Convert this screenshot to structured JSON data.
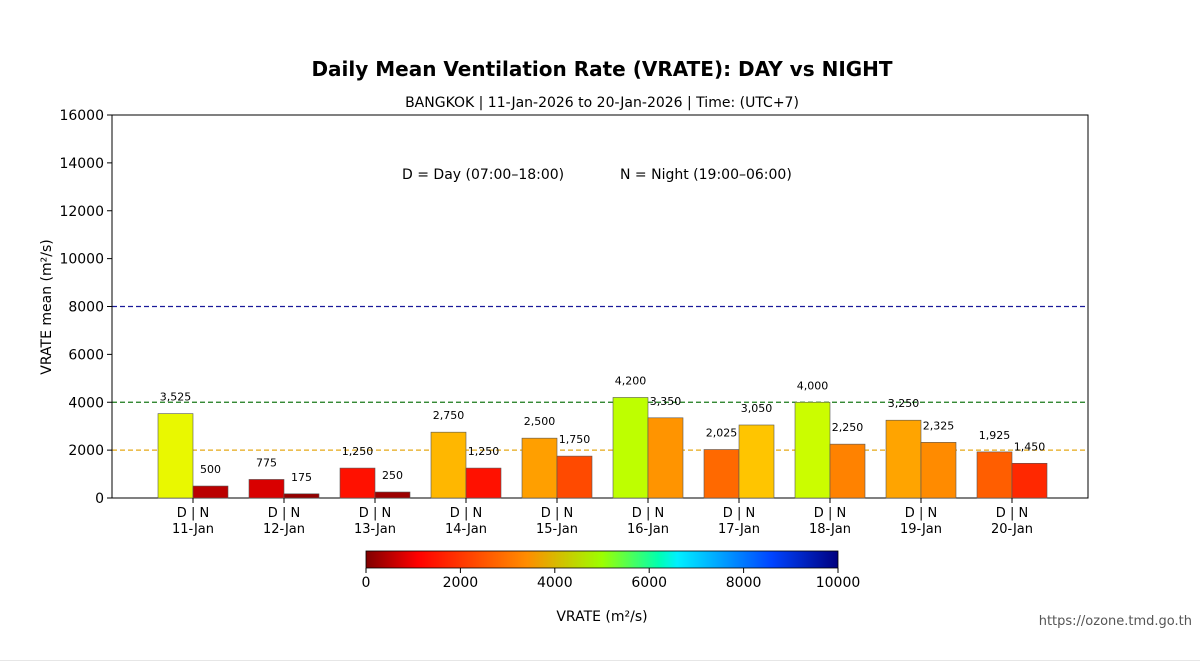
{
  "chart_data": {
    "type": "bar",
    "title": "Daily Mean Ventilation Rate (VRATE): DAY vs NIGHT",
    "subtitle": "BANGKOK | 11-Jan-2026 to 20-Jan-2026 | Time: (UTC+7)",
    "ylabel": "VRATE mean (m²/s)",
    "xlabel": "",
    "ylim": [
      0,
      16000
    ],
    "yticks": [
      "0",
      "2000",
      "4000",
      "6000",
      "8000",
      "10000",
      "12000",
      "14000",
      "16000"
    ],
    "legend_note": {
      "day": "D = Day (07:00–18:00)",
      "night": "N = Night (19:00–06:00)"
    },
    "sublabel": "D | N",
    "categories": [
      "11-Jan",
      "12-Jan",
      "13-Jan",
      "14-Jan",
      "15-Jan",
      "16-Jan",
      "17-Jan",
      "18-Jan",
      "19-Jan",
      "20-Jan"
    ],
    "series": [
      {
        "name": "Day",
        "values": [
          3525,
          775,
          1250,
          2750,
          2500,
          4200,
          2025,
          4000,
          3250,
          1925
        ],
        "labels": [
          "3,525",
          "775",
          "1,250",
          "2,750",
          "2,500",
          "4,200",
          "2,025",
          "4,000",
          "3,250",
          "1,925"
        ]
      },
      {
        "name": "Night",
        "values": [
          500,
          175,
          250,
          1250,
          1750,
          3350,
          3050,
          2250,
          2325,
          1450
        ],
        "labels": [
          "500",
          "175",
          "250",
          "1,250",
          "1,750",
          "3,350",
          "3,050",
          "2,250",
          "2,325",
          "1,450"
        ]
      }
    ],
    "reference_lines": [
      {
        "value": 2000,
        "color": "#e6a817"
      },
      {
        "value": 4000,
        "color": "#1a7a1a"
      },
      {
        "value": 8000,
        "color": "#1a1a9a"
      }
    ],
    "colorbar": {
      "label": "VRATE (m²/s)",
      "range": [
        0,
        10000
      ],
      "ticks": [
        "0",
        "2000",
        "4000",
        "6000",
        "8000",
        "10000"
      ],
      "colormap": "jet-reversed"
    }
  },
  "source": "https://ozone.tmd.go.th"
}
